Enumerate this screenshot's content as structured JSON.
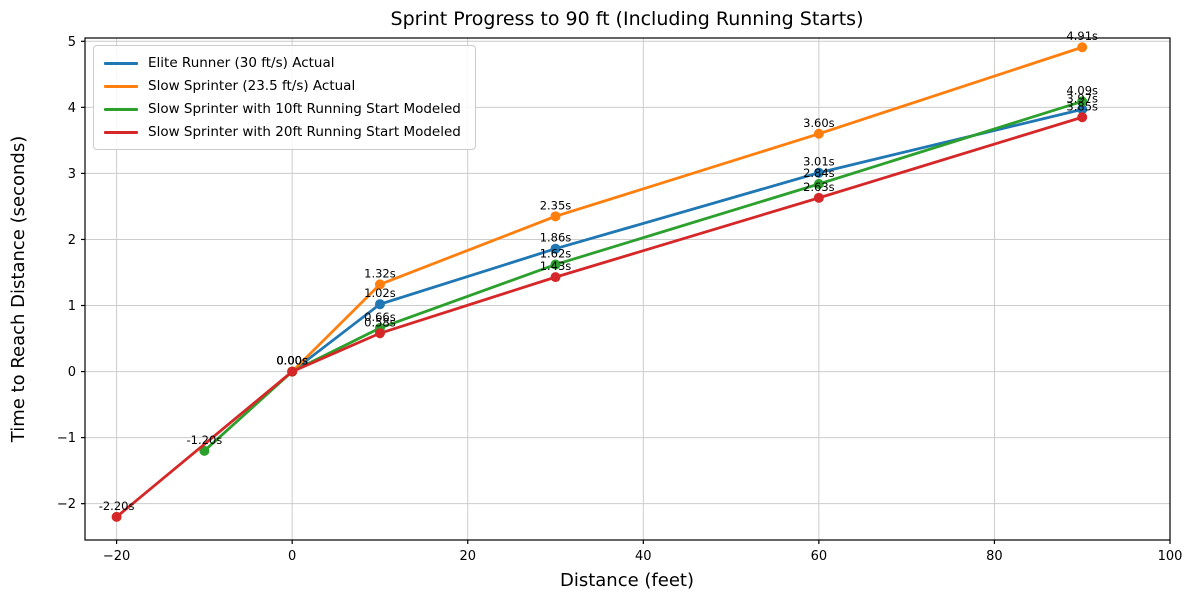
{
  "chart_data": {
    "type": "line",
    "title": "Sprint Progress to 90 ft (Including Running Starts)",
    "xlabel": "Distance (feet)",
    "ylabel": "Time to Reach Distance (seconds)",
    "xlim": [
      -23.6,
      100
    ],
    "ylim": [
      -2.55,
      5.05
    ],
    "xticks": [
      -20,
      0,
      20,
      40,
      60,
      80,
      100
    ],
    "yticks": [
      -2,
      -1,
      0,
      1,
      2,
      3,
      4,
      5
    ],
    "grid": true,
    "grid_color": "#cccccc",
    "spine_color": "#000000",
    "legend_position": "upper-left",
    "series": [
      {
        "name": "Elite Runner (30 ft/s) Actual",
        "color": "#1f77b4",
        "x": [
          0,
          10,
          30,
          60,
          90
        ],
        "y": [
          0.0,
          1.02,
          1.86,
          3.01,
          3.97
        ],
        "point_labels": [
          "0.00s",
          "1.02s",
          "1.86s",
          "3.01s",
          "3.97s"
        ]
      },
      {
        "name": "Slow Sprinter (23.5 ft/s) Actual",
        "color": "#ff7f0e",
        "x": [
          0,
          10,
          30,
          60,
          90
        ],
        "y": [
          0.0,
          1.32,
          2.35,
          3.6,
          4.91
        ],
        "point_labels": [
          "0.00s",
          "1.32s",
          "2.35s",
          "3.60s",
          "4.91s"
        ]
      },
      {
        "name": "Slow Sprinter with 10ft Running Start Modeled",
        "color": "#2ca02c",
        "x": [
          -10,
          0,
          10,
          30,
          60,
          90
        ],
        "y": [
          -1.2,
          0.0,
          0.66,
          1.62,
          2.84,
          4.09
        ],
        "point_labels": [
          "-1.20s",
          "0.00s",
          "0.66s",
          "1.62s",
          "2.84s",
          "4.09s"
        ]
      },
      {
        "name": "Slow Sprinter with 20ft Running Start Modeled",
        "color": "#d62728",
        "x": [
          -20,
          0,
          10,
          30,
          60,
          90
        ],
        "y": [
          -2.2,
          0.0,
          0.58,
          1.43,
          2.63,
          3.85
        ],
        "point_labels": [
          "-2.20s",
          "0.00s",
          "0.58s",
          "1.43s",
          "2.63s",
          "3.85s"
        ]
      }
    ]
  }
}
